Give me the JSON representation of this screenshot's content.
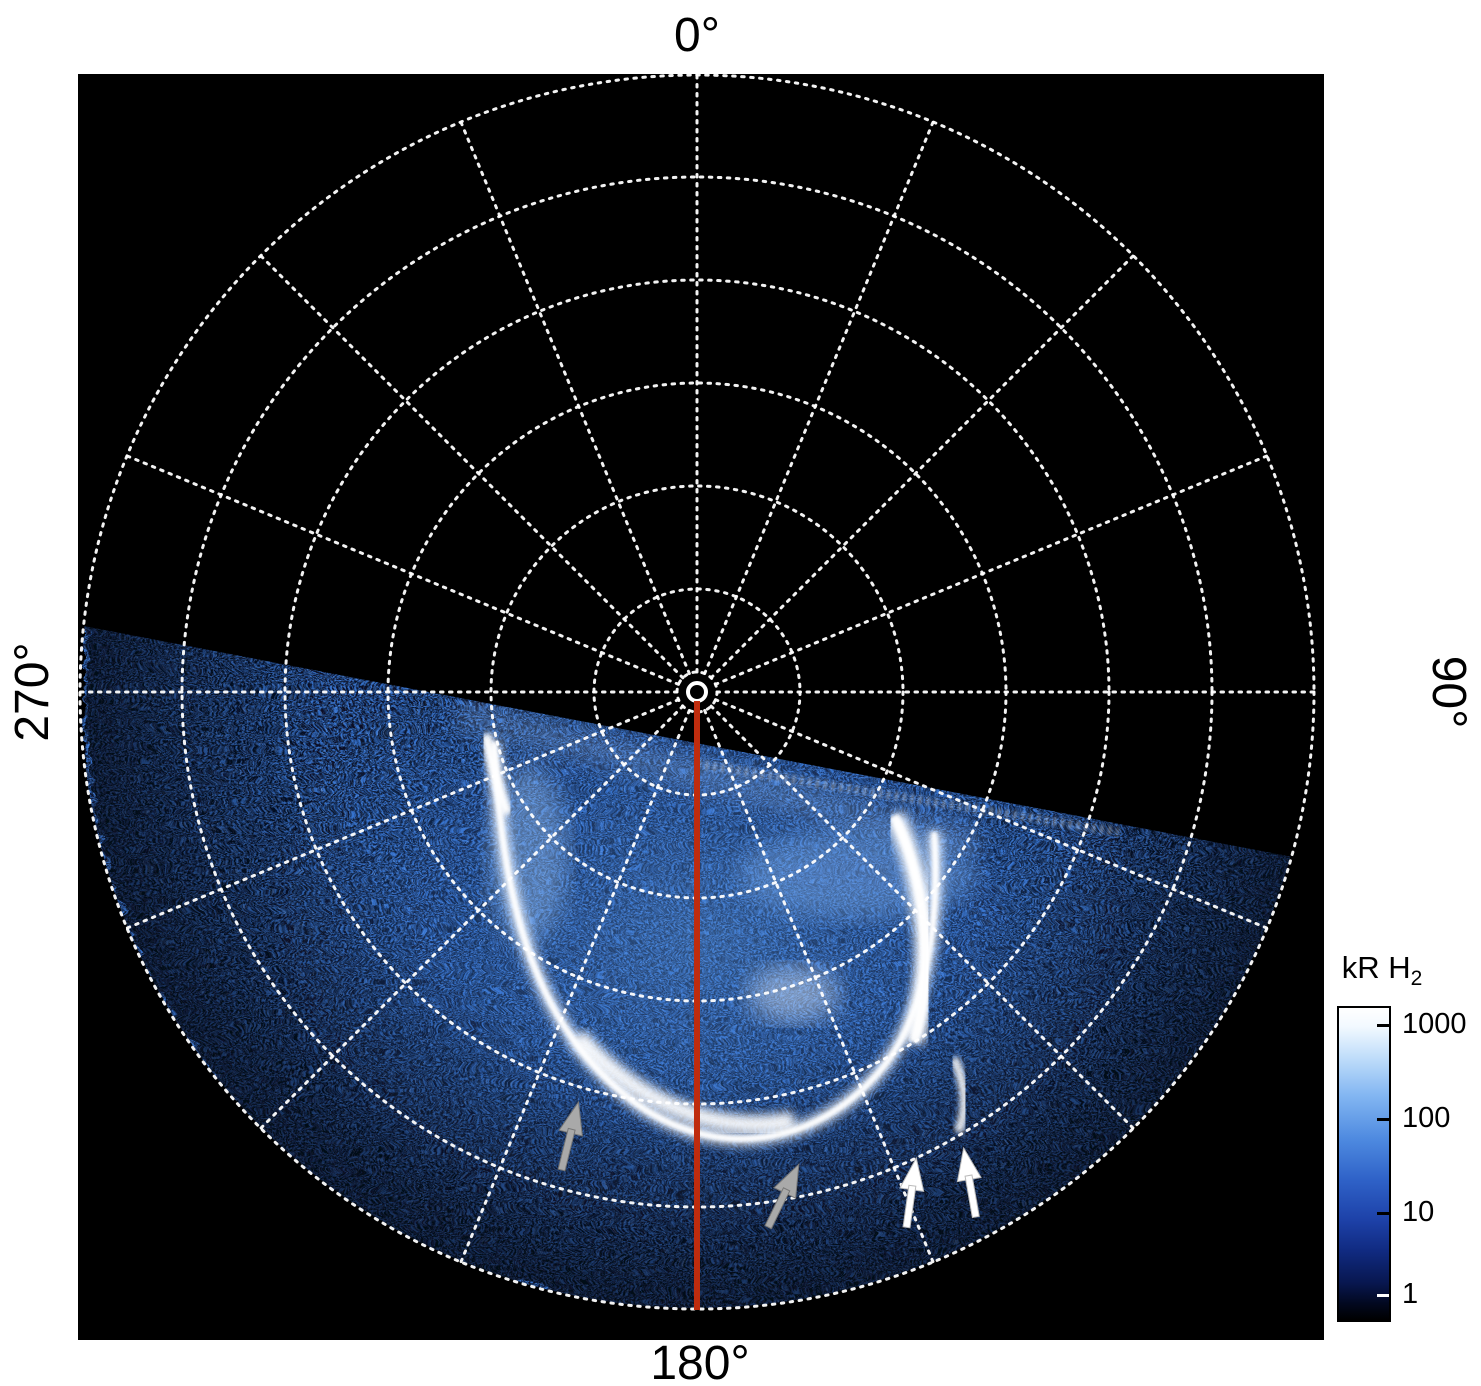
{
  "figure": {
    "background": "#ffffff",
    "plot_background": "#000000"
  },
  "labels": {
    "angle_top": "0°",
    "angle_right": "90°",
    "angle_bottom": "180°",
    "angle_left": "270°"
  },
  "colorbar": {
    "title_main": "kR H",
    "title_sub": "2",
    "ticks": [
      "1000",
      "100",
      "10",
      "1"
    ]
  },
  "colors": {
    "grid": "#ffffff",
    "meridian_line": "#bf2c0e",
    "arrow_gray": "#a9a9a9",
    "arrow_white": "#ffffff",
    "aurora_base": "#071127",
    "aurora_mid_speckle": "#3b7de0",
    "aurora_bright_speckle": "#9cc6ff",
    "arc_bright": "#ffffff"
  },
  "chart_data": {
    "type": "heatmap",
    "projection": "polar",
    "title": "",
    "units": "kR H2",
    "angular_tick_labels": [
      "0°",
      "90°",
      "180°",
      "270°"
    ],
    "grid": {
      "style": "dotted-white",
      "concentric_circles": 6,
      "inner_marker_circle": true,
      "meridian_step_deg": 22.5,
      "outer_circle_touches_frame": true
    },
    "colorbar": {
      "label": "kR H2",
      "scale": "log",
      "min": 1,
      "max": 1000,
      "tick_values": [
        1000,
        100,
        10,
        1
      ],
      "colormap": [
        "#000000",
        "#0a1a60",
        "#2f62c8",
        "#83b6f2",
        "#ffffff"
      ]
    },
    "emission": {
      "description": "Patchy blue H2 auroral emission fills the hemisphere below a tilted terminator line (left end near azimuth 270 side at colatitude ~32°, right end near azimuth 90 side); region above terminator is black (no data).",
      "terminator_tilt": "upper-left high, lower-right low, ~11° tilt",
      "diffuse_brightness_kR": "5-100"
    },
    "features": [
      {
        "name": "main-auroral-arc",
        "shape": "U-shaped partial oval",
        "azimuth_range_deg": [
          140,
          215
        ],
        "colatitude_range_deg": [
          15,
          43
        ],
        "peak_brightness_kR": 1000
      },
      {
        "name": "dawn-side-bright-crescent",
        "azimuth_range_deg": [
          135,
          160
        ],
        "colatitude_range_deg": [
          15,
          30
        ],
        "peak_brightness_kR": 1000
      },
      {
        "name": "outer-arc-fragment",
        "azimuth_deg": 150,
        "colatitude_deg": 38,
        "brightness_kR": 300
      },
      {
        "name": "central-meridian-line",
        "azimuth_deg": 180,
        "color": "#bf2c0e",
        "from": "pole",
        "to": "outer circle"
      },
      {
        "name": "pole-marker-ring",
        "color": "#ffffff"
      }
    ],
    "annotations": [
      {
        "type": "arrow",
        "color": "gray",
        "approx_azimuth_deg": 196,
        "approx_colatitude_deg": 42,
        "points": "up-right"
      },
      {
        "type": "arrow",
        "color": "gray",
        "approx_azimuth_deg": 168,
        "approx_colatitude_deg": 47,
        "points": "up-right"
      },
      {
        "type": "arrow",
        "color": "white",
        "approx_azimuth_deg": 155,
        "approx_colatitude_deg": 50,
        "points": "up"
      },
      {
        "type": "arrow",
        "color": "white",
        "approx_azimuth_deg": 150,
        "approx_colatitude_deg": 52,
        "points": "up-left"
      }
    ]
  }
}
